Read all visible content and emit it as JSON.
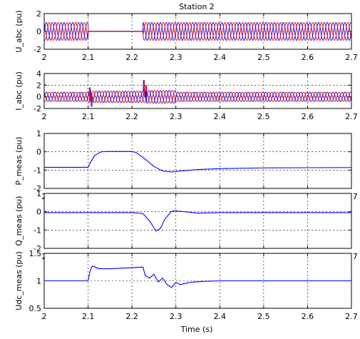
{
  "figure": {
    "title": "Station 2",
    "xlabel": "Time (s)"
  },
  "chart_data": [
    {
      "type": "line",
      "ylabel": "U_abc (pu)",
      "xlim": [
        2,
        2.7
      ],
      "ylim": [
        -2,
        2
      ],
      "xticks": [
        "2",
        "2.1",
        "2.2",
        "2.3",
        "2.4",
        "2.5",
        "2.6",
        "2.7"
      ],
      "yticks": [
        "-2",
        "0",
        "2"
      ],
      "grid": true,
      "kind": "three_phase_voltage",
      "series_colors": [
        "#0000ff",
        "#ff0000",
        "#7a0080"
      ],
      "frequency_hz": 50,
      "segments": [
        {
          "t0": 2.0,
          "t1": 2.1,
          "amplitude": 1.0
        },
        {
          "t0": 2.1,
          "t1": 2.225,
          "amplitude": 0.02
        },
        {
          "t0": 2.225,
          "t1": 2.7,
          "amplitude": 1.0
        }
      ]
    },
    {
      "type": "line",
      "ylabel": "I_abc (pu)",
      "xlim": [
        2,
        2.7
      ],
      "ylim": [
        -2,
        4
      ],
      "xticks": [
        "2",
        "2.1",
        "2.2",
        "2.3",
        "2.4",
        "2.5",
        "2.6",
        "2.7"
      ],
      "yticks": [
        "-2",
        "0",
        "2",
        "4"
      ],
      "grid": true,
      "kind": "three_phase_current",
      "series_colors": [
        "#0000ff",
        "#ff0000",
        "#7a0080"
      ],
      "frequency_hz": 50,
      "segments": [
        {
          "t0": 2.0,
          "t1": 2.1,
          "amplitude": 0.8
        },
        {
          "t0": 2.1,
          "t1": 2.23,
          "amplitude": 1.0
        },
        {
          "t0": 2.23,
          "t1": 2.3,
          "amplitude": 1.1
        },
        {
          "t0": 2.3,
          "t1": 2.7,
          "amplitude": 0.8
        }
      ],
      "spikes": [
        {
          "t": 2.104,
          "value": 1.6
        },
        {
          "t": 2.108,
          "value": -1.7
        },
        {
          "t": 2.227,
          "value": 2.9
        },
        {
          "t": 2.232,
          "value": 2.0
        }
      ]
    },
    {
      "type": "line",
      "ylabel": "P_meas (pu)",
      "xlim": [
        2,
        2.7
      ],
      "ylim": [
        -2,
        1
      ],
      "xticks": [
        "2",
        "2.1",
        "2.2",
        "2.3",
        "2.4",
        "2.5",
        "2.6",
        "2.7"
      ],
      "yticks": [
        "-2",
        "-1",
        "0",
        "1"
      ],
      "grid": true,
      "color": "#0000ff",
      "x": [
        2.0,
        2.1,
        2.105,
        2.115,
        2.13,
        2.15,
        2.2,
        2.21,
        2.23,
        2.25,
        2.27,
        2.29,
        2.31,
        2.35,
        2.4,
        2.5,
        2.6,
        2.7
      ],
      "y": [
        -0.85,
        -0.85,
        -0.6,
        -0.2,
        0.0,
        0.02,
        0.02,
        -0.05,
        -0.4,
        -0.8,
        -1.05,
        -1.1,
        -1.05,
        -0.97,
        -0.92,
        -0.88,
        -0.87,
        -0.86
      ]
    },
    {
      "type": "line",
      "ylabel": "Q_meas (pu)",
      "xlim": [
        2,
        2.7
      ],
      "ylim": [
        -2,
        1
      ],
      "xticks": [
        "2",
        "2.1",
        "2.2",
        "2.3",
        "2.4",
        "2.5",
        "2.6",
        "2.7"
      ],
      "yticks": [
        "-2",
        "-1",
        "0",
        "1"
      ],
      "grid": true,
      "color": "#0000ff",
      "x": [
        2.0,
        2.1,
        2.2,
        2.225,
        2.24,
        2.255,
        2.265,
        2.275,
        2.29,
        2.3,
        2.32,
        2.35,
        2.4,
        2.5,
        2.6,
        2.7
      ],
      "y": [
        -0.05,
        -0.05,
        -0.05,
        -0.1,
        -0.5,
        -1.05,
        -0.9,
        -0.4,
        0.02,
        0.05,
        0.0,
        -0.08,
        -0.05,
        -0.05,
        -0.05,
        -0.05
      ]
    },
    {
      "type": "line",
      "ylabel": "Udc_meas (pu)",
      "xlim": [
        2,
        2.7
      ],
      "ylim": [
        0.5,
        1.5
      ],
      "xticks": [
        "2",
        "2.1",
        "2.2",
        "2.3",
        "2.4",
        "2.5",
        "2.6",
        "2.7"
      ],
      "yticks": [
        "0.5",
        "1",
        "1.5"
      ],
      "grid": true,
      "color": "#0000ff",
      "x": [
        2.0,
        2.1,
        2.105,
        2.11,
        2.125,
        2.15,
        2.2,
        2.225,
        2.23,
        2.24,
        2.25,
        2.26,
        2.27,
        2.28,
        2.29,
        2.3,
        2.31,
        2.33,
        2.36,
        2.4,
        2.5,
        2.6,
        2.7
      ],
      "y": [
        1.0,
        1.0,
        1.2,
        1.27,
        1.22,
        1.22,
        1.24,
        1.25,
        1.1,
        1.05,
        1.12,
        0.98,
        1.05,
        0.93,
        0.88,
        0.97,
        0.93,
        0.97,
        0.99,
        1.0,
        1.0,
        1.0,
        1.0
      ]
    }
  ]
}
